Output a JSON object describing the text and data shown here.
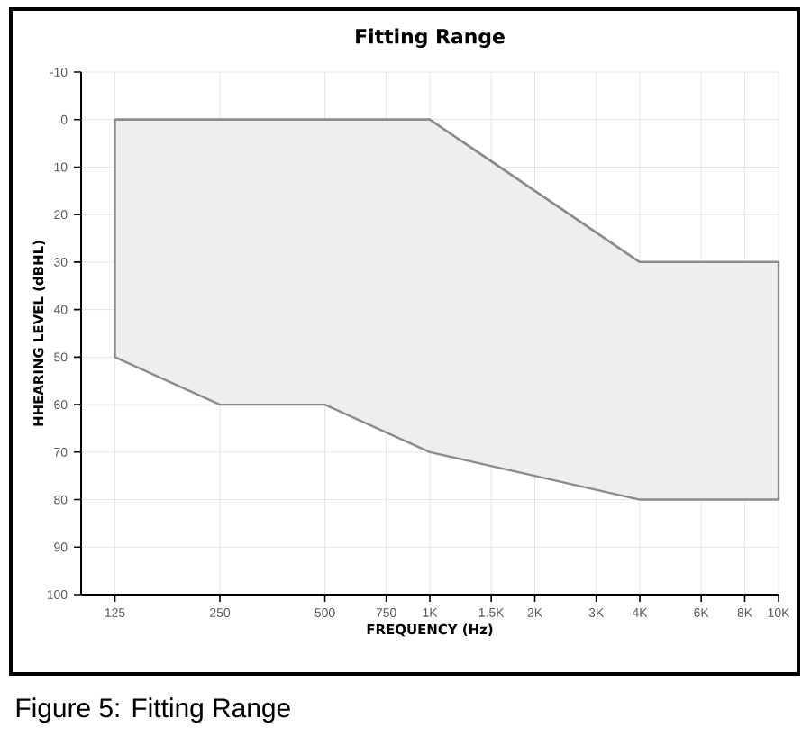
{
  "chart_data": {
    "type": "line",
    "title": "Fitting Range",
    "xlabel": "FREQUENCY (Hz)",
    "ylabel": "HHEARING LEVEL (dBHL)",
    "annotations": [
      "Figure 5: Fitting Range"
    ],
    "x": [
      125,
      250,
      500,
      1000,
      4000,
      10000
    ],
    "series": [
      {
        "color": "#8c8c8c",
        "values": [
          0,
          0,
          0,
          0,
          30,
          30
        ],
        "upper": [
          0,
          0,
          0,
          0,
          30,
          30
        ],
        "lower": [
          50,
          60,
          60,
          70,
          80,
          80
        ]
      }
    ],
    "log": "x",
    "grid": true,
    "xlim": [
      100,
      10000
    ],
    "xticks": [
      125,
      250,
      500,
      750,
      {
        "value": 1000,
        "label": "1K"
      },
      {
        "value": 1500,
        "label": "1.5K"
      },
      {
        "value": 2000,
        "label": "2K"
      },
      {
        "value": 3000,
        "label": "3K"
      },
      {
        "value": 4000,
        "label": "4K"
      },
      {
        "value": 6000,
        "label": "6K"
      },
      {
        "value": 8000,
        "label": "8K"
      },
      {
        "value": 10000,
        "label": "10K"
      }
    ],
    "ylim": [
      100,
      -10
    ],
    "yticks": [
      -10,
      0,
      10,
      20,
      30,
      40,
      50,
      60,
      70,
      80,
      90,
      100
    ]
  }
}
